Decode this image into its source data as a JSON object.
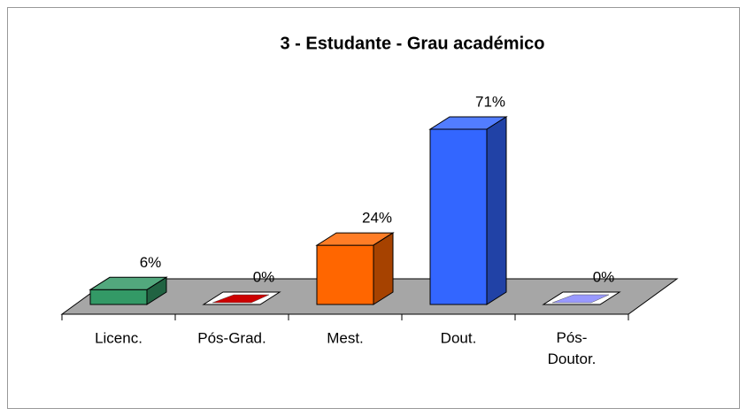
{
  "chart_data": {
    "type": "bar3d",
    "title": "3 - Estudante - Grau académico",
    "categories": [
      "Licenc.",
      "Pós-Grad.",
      "Mest.",
      "Dout.",
      "Pós-Doutor."
    ],
    "values": [
      6,
      0,
      24,
      71,
      0
    ],
    "value_labels": [
      "6%",
      "0%",
      "24%",
      "71%",
      "0%"
    ],
    "colors": [
      "#339966",
      "#cc0000",
      "#ff6600",
      "#3366ff",
      "#9999ff"
    ]
  }
}
